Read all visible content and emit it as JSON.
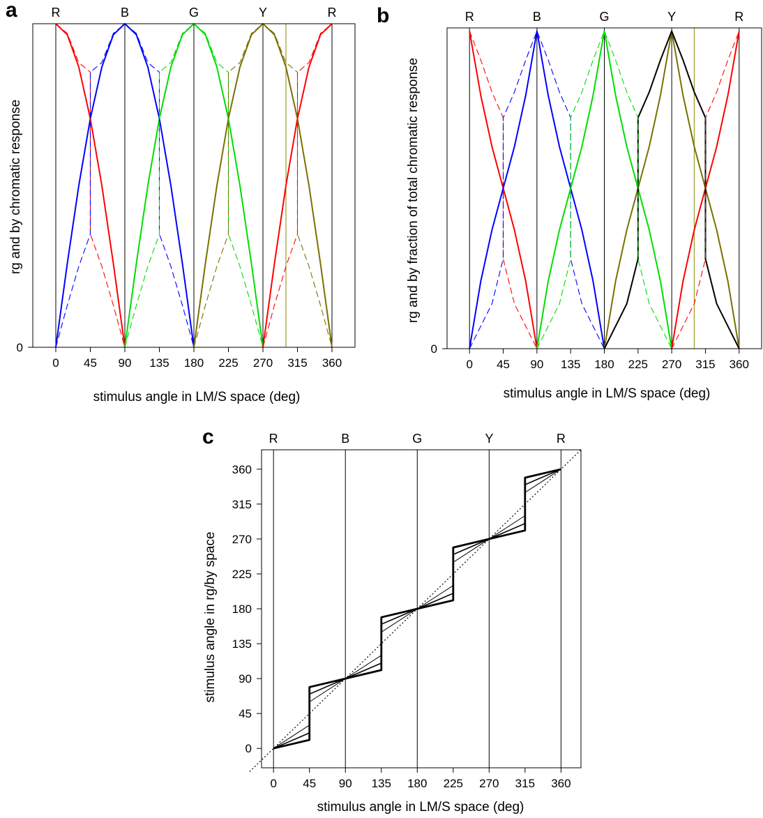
{
  "chart_data": [
    {
      "panel_label": "a",
      "type": "line",
      "xlabel": "stimulus angle in LM/S space (deg)",
      "ylabel": "rg and by chromatic response",
      "x_ticks": [
        0,
        45,
        90,
        135,
        180,
        225,
        270,
        315,
        360
      ],
      "y_ticks": [
        0
      ],
      "xlim": [
        -30,
        390
      ],
      "ylim": [
        0,
        1
      ],
      "hue_labels": [
        {
          "text": "R",
          "x": 0
        },
        {
          "text": "B",
          "x": 90
        },
        {
          "text": "G",
          "x": 180
        },
        {
          "text": "Y",
          "x": 270
        },
        {
          "text": "R",
          "x": 360
        }
      ],
      "vlines": [
        {
          "x": 0,
          "color": "#000000"
        },
        {
          "x": 90,
          "color": "#000000"
        },
        {
          "x": 180,
          "color": "#000000"
        },
        {
          "x": 270,
          "color": "#000000"
        },
        {
          "x": 300,
          "color": "#8a8a00"
        },
        {
          "x": 360,
          "color": "#000000"
        }
      ],
      "series": [
        {
          "color": "#ff0000",
          "style": "solid",
          "x": [
            0,
            15,
            30,
            45,
            60,
            75,
            90
          ],
          "y": [
            1.0,
            0.966,
            0.866,
            0.707,
            0.5,
            0.259,
            0.0
          ]
        },
        {
          "color": "#0000ff",
          "style": "solid",
          "x": [
            0,
            15,
            30,
            45,
            60,
            75,
            90,
            105,
            120,
            135,
            150,
            165,
            180
          ],
          "y": [
            0.0,
            0.259,
            0.5,
            0.707,
            0.866,
            0.966,
            1.0,
            0.966,
            0.866,
            0.707,
            0.5,
            0.259,
            0.0
          ]
        },
        {
          "color": "#00dd00",
          "style": "solid",
          "x": [
            90,
            105,
            120,
            135,
            150,
            165,
            180,
            195,
            210,
            225,
            240,
            255,
            270
          ],
          "y": [
            0.0,
            0.259,
            0.5,
            0.707,
            0.866,
            0.966,
            1.0,
            0.966,
            0.866,
            0.707,
            0.5,
            0.259,
            0.0
          ]
        },
        {
          "color": "#7a7000",
          "style": "solid",
          "x": [
            180,
            195,
            210,
            225,
            240,
            255,
            270,
            285,
            300,
            315,
            330,
            345,
            360
          ],
          "y": [
            0.0,
            0.259,
            0.5,
            0.707,
            0.866,
            0.966,
            1.0,
            0.966,
            0.866,
            0.707,
            0.5,
            0.259,
            0.0
          ]
        },
        {
          "color": "#ff0000",
          "style": "solid",
          "x": [
            270,
            285,
            300,
            315,
            330,
            345,
            360
          ],
          "y": [
            0.0,
            0.259,
            0.5,
            0.707,
            0.866,
            0.966,
            1.0
          ]
        },
        {
          "color": "#ff0000",
          "style": "dashed",
          "x": [
            0,
            15,
            30,
            45,
            45,
            60,
            75,
            90
          ],
          "y": [
            1.0,
            0.97,
            0.88,
            0.85,
            0.35,
            0.25,
            0.13,
            0.0
          ]
        },
        {
          "color": "#0000ff",
          "style": "dashed",
          "x": [
            0,
            15,
            30,
            45,
            45,
            60,
            75,
            90,
            105,
            120,
            135,
            135,
            150,
            165,
            180
          ],
          "y": [
            0.0,
            0.13,
            0.25,
            0.35,
            0.85,
            0.88,
            0.97,
            1.0,
            0.97,
            0.88,
            0.85,
            0.35,
            0.25,
            0.13,
            0.0
          ]
        },
        {
          "color": "#00dd00",
          "style": "dashed",
          "x": [
            90,
            105,
            120,
            135,
            135,
            150,
            165,
            180,
            195,
            210,
            225,
            225,
            240,
            255,
            270
          ],
          "y": [
            0.0,
            0.13,
            0.25,
            0.35,
            0.85,
            0.88,
            0.97,
            1.0,
            0.97,
            0.88,
            0.85,
            0.35,
            0.25,
            0.13,
            0.0
          ]
        },
        {
          "color": "#7a7000",
          "style": "dashed",
          "x": [
            180,
            195,
            210,
            225,
            225,
            240,
            255,
            270,
            285,
            300,
            315,
            315,
            330,
            345,
            360
          ],
          "y": [
            0.0,
            0.13,
            0.25,
            0.35,
            0.85,
            0.88,
            0.97,
            1.0,
            0.97,
            0.88,
            0.85,
            0.35,
            0.25,
            0.13,
            0.0
          ]
        },
        {
          "color": "#ff0000",
          "style": "dashed",
          "x": [
            270,
            285,
            300,
            315,
            315,
            330,
            345,
            360
          ],
          "y": [
            0.0,
            0.13,
            0.25,
            0.35,
            0.85,
            0.88,
            0.97,
            1.0
          ]
        }
      ]
    },
    {
      "panel_label": "b",
      "type": "line",
      "xlabel": "stimulus angle in LM/S space (deg)",
      "ylabel": "rg and by fraction of total chromatic response",
      "x_ticks": [
        0,
        45,
        90,
        135,
        180,
        225,
        270,
        315,
        360
      ],
      "y_ticks": [
        0
      ],
      "xlim": [
        -30,
        390
      ],
      "ylim": [
        0,
        1
      ],
      "hue_labels": [
        {
          "text": "R",
          "x": 0
        },
        {
          "text": "B",
          "x": 90
        },
        {
          "text": "G",
          "x": 180
        },
        {
          "text": "Y",
          "x": 270
        },
        {
          "text": "R",
          "x": 360
        }
      ],
      "vlines": [
        {
          "x": 0,
          "color": "#000000"
        },
        {
          "x": 90,
          "color": "#000000"
        },
        {
          "x": 180,
          "color": "#000000"
        },
        {
          "x": 270,
          "color": "#000000"
        },
        {
          "x": 300,
          "color": "#8a8a00"
        },
        {
          "x": 360,
          "color": "#000000"
        }
      ],
      "series": [
        {
          "color": "#ff0000",
          "style": "solid",
          "x": [
            0,
            15,
            30,
            45,
            60,
            75,
            90
          ],
          "y": [
            0.99,
            0.79,
            0.63,
            0.5,
            0.37,
            0.21,
            0.0
          ]
        },
        {
          "color": "#0000ff",
          "style": "solid",
          "x": [
            0,
            15,
            30,
            45,
            60,
            75,
            90,
            105,
            120,
            135,
            150,
            165,
            180
          ],
          "y": [
            0.0,
            0.21,
            0.37,
            0.5,
            0.63,
            0.79,
            0.99,
            0.79,
            0.63,
            0.5,
            0.37,
            0.21,
            0.0
          ]
        },
        {
          "color": "#00dd00",
          "style": "solid",
          "x": [
            90,
            105,
            120,
            135,
            150,
            165,
            180,
            195,
            210,
            225,
            240,
            255,
            270
          ],
          "y": [
            0.0,
            0.21,
            0.37,
            0.5,
            0.63,
            0.79,
            0.99,
            0.79,
            0.63,
            0.5,
            0.37,
            0.21,
            0.0
          ]
        },
        {
          "color": "#7a7000",
          "style": "solid",
          "x": [
            180,
            195,
            210,
            225,
            240,
            255,
            270,
            285,
            300,
            315,
            330,
            345,
            360
          ],
          "y": [
            0.0,
            0.21,
            0.37,
            0.5,
            0.63,
            0.79,
            0.99,
            0.79,
            0.63,
            0.5,
            0.37,
            0.21,
            0.0
          ]
        },
        {
          "color": "#ff0000",
          "style": "solid",
          "x": [
            270,
            285,
            300,
            315,
            330,
            345,
            360
          ],
          "y": [
            0.0,
            0.21,
            0.37,
            0.5,
            0.63,
            0.79,
            0.99
          ]
        },
        {
          "color": "#000000",
          "style": "solid",
          "x": [
            180,
            195,
            210,
            225,
            225,
            240,
            255,
            270,
            285,
            300,
            315,
            315,
            330,
            345,
            360
          ],
          "y": [
            0.0,
            0.07,
            0.14,
            0.28,
            0.72,
            0.8,
            0.9,
            0.99,
            0.9,
            0.8,
            0.72,
            0.28,
            0.14,
            0.07,
            0.0
          ]
        },
        {
          "color": "#ff0000",
          "style": "dashed",
          "x": [
            0,
            15,
            30,
            45,
            45,
            60,
            75,
            90
          ],
          "y": [
            0.99,
            0.9,
            0.8,
            0.72,
            0.28,
            0.14,
            0.07,
            0.0
          ]
        },
        {
          "color": "#0000ff",
          "style": "dashed",
          "x": [
            0,
            15,
            30,
            45,
            45,
            60,
            75,
            90,
            105,
            120,
            135,
            135,
            150,
            165,
            180
          ],
          "y": [
            0.0,
            0.07,
            0.14,
            0.28,
            0.72,
            0.8,
            0.9,
            0.99,
            0.9,
            0.8,
            0.72,
            0.28,
            0.14,
            0.07,
            0.0
          ]
        },
        {
          "color": "#00dd00",
          "style": "dashed",
          "x": [
            90,
            105,
            120,
            135,
            135,
            150,
            165,
            180,
            195,
            210,
            225,
            225,
            240,
            255,
            270
          ],
          "y": [
            0.0,
            0.07,
            0.14,
            0.28,
            0.72,
            0.8,
            0.9,
            0.99,
            0.9,
            0.8,
            0.72,
            0.28,
            0.14,
            0.07,
            0.0
          ]
        },
        {
          "color": "#ff0000",
          "style": "dashed",
          "x": [
            270,
            285,
            300,
            315,
            315,
            330,
            345,
            360
          ],
          "y": [
            0.0,
            0.07,
            0.14,
            0.28,
            0.72,
            0.8,
            0.9,
            0.99
          ]
        }
      ]
    },
    {
      "panel_label": "c",
      "type": "line",
      "xlabel": "stimulus angle in LM/S space (deg)",
      "ylabel": "stimulus angle in rg/by space",
      "x_ticks": [
        0,
        45,
        90,
        135,
        180,
        225,
        270,
        315,
        360
      ],
      "y_ticks": [
        0,
        45,
        90,
        135,
        180,
        225,
        270,
        315,
        360
      ],
      "xlim": [
        -15,
        385
      ],
      "ylim": [
        -25,
        385
      ],
      "hue_labels": [
        {
          "text": "R",
          "x": 0
        },
        {
          "text": "B",
          "x": 90
        },
        {
          "text": "G",
          "x": 180
        },
        {
          "text": "Y",
          "x": 270
        },
        {
          "text": "R",
          "x": 360
        }
      ],
      "vlines": [
        {
          "x": 0,
          "color": "#000000"
        },
        {
          "x": 90,
          "color": "#000000"
        },
        {
          "x": 180,
          "color": "#000000"
        },
        {
          "x": 270,
          "color": "#000000"
        },
        {
          "x": 360,
          "color": "#000000"
        }
      ],
      "series": [
        {
          "color": "#000000",
          "style": "dotted",
          "width": 1.2,
          "x": [
            -30,
            385
          ],
          "y": [
            -30,
            385
          ]
        },
        {
          "color": "#000000",
          "style": "solid",
          "width": 1,
          "x": [
            0,
            45,
            45,
            90,
            135,
            135,
            180,
            225,
            225,
            270,
            315,
            315,
            360
          ],
          "y": [
            0,
            30,
            60,
            90,
            120,
            150,
            180,
            210,
            240,
            270,
            300,
            330,
            360
          ]
        },
        {
          "color": "#000000",
          "style": "solid",
          "width": 1.6,
          "x": [
            0,
            45,
            45,
            90,
            135,
            135,
            180,
            225,
            225,
            270,
            315,
            315,
            360
          ],
          "y": [
            0,
            20,
            70,
            90,
            110,
            160,
            180,
            200,
            250,
            270,
            290,
            340,
            360
          ]
        },
        {
          "color": "#000000",
          "style": "solid",
          "width": 2.8,
          "x": [
            0,
            45,
            45,
            90,
            135,
            135,
            180,
            225,
            225,
            270,
            315,
            315,
            360
          ],
          "y": [
            0,
            11,
            79,
            90,
            101,
            169,
            180,
            191,
            259,
            270,
            281,
            349,
            360
          ]
        }
      ]
    }
  ]
}
